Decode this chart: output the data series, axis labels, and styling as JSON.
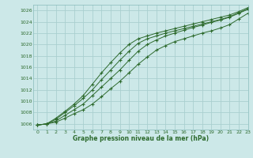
{
  "xlabel": "Graphe pression niveau de la mer (hPa)",
  "ylim": [
    1005,
    1027
  ],
  "xlim": [
    -0.5,
    23
  ],
  "yticks": [
    1006,
    1008,
    1010,
    1012,
    1014,
    1016,
    1018,
    1020,
    1022,
    1024,
    1026
  ],
  "xticks": [
    0,
    1,
    2,
    3,
    4,
    5,
    6,
    7,
    8,
    9,
    10,
    11,
    12,
    13,
    14,
    15,
    16,
    17,
    18,
    19,
    20,
    21,
    22,
    23
  ],
  "background_color": "#cce8e8",
  "grid_color": "#aacfcf",
  "line_color": "#2d6a2d",
  "series": [
    [
      1005.8,
      1006.0,
      1006.3,
      1007.0,
      1007.8,
      1008.5,
      1009.5,
      1010.8,
      1012.2,
      1013.5,
      1015.0,
      1016.5,
      1017.8,
      1019.0,
      1019.8,
      1020.5,
      1021.0,
      1021.5,
      1022.0,
      1022.4,
      1022.9,
      1023.5,
      1024.5,
      1025.5
    ],
    [
      1005.8,
      1006.0,
      1006.5,
      1007.5,
      1008.5,
      1009.5,
      1011.0,
      1012.5,
      1014.0,
      1015.5,
      1017.2,
      1018.8,
      1020.0,
      1020.8,
      1021.5,
      1022.0,
      1022.5,
      1023.0,
      1023.4,
      1023.9,
      1024.3,
      1024.8,
      1025.5,
      1026.2
    ],
    [
      1005.8,
      1006.0,
      1007.0,
      1008.2,
      1009.5,
      1011.0,
      1013.0,
      1015.0,
      1016.8,
      1018.5,
      1020.0,
      1021.0,
      1021.5,
      1022.0,
      1022.4,
      1022.8,
      1023.2,
      1023.6,
      1024.0,
      1024.4,
      1024.8,
      1025.2,
      1025.8,
      1026.5
    ],
    [
      1005.8,
      1006.0,
      1006.8,
      1008.0,
      1009.2,
      1010.5,
      1012.0,
      1013.8,
      1015.5,
      1017.2,
      1018.8,
      1020.2,
      1021.0,
      1021.5,
      1022.0,
      1022.4,
      1022.8,
      1023.2,
      1023.6,
      1024.0,
      1024.4,
      1024.9,
      1025.6,
      1026.3
    ]
  ]
}
